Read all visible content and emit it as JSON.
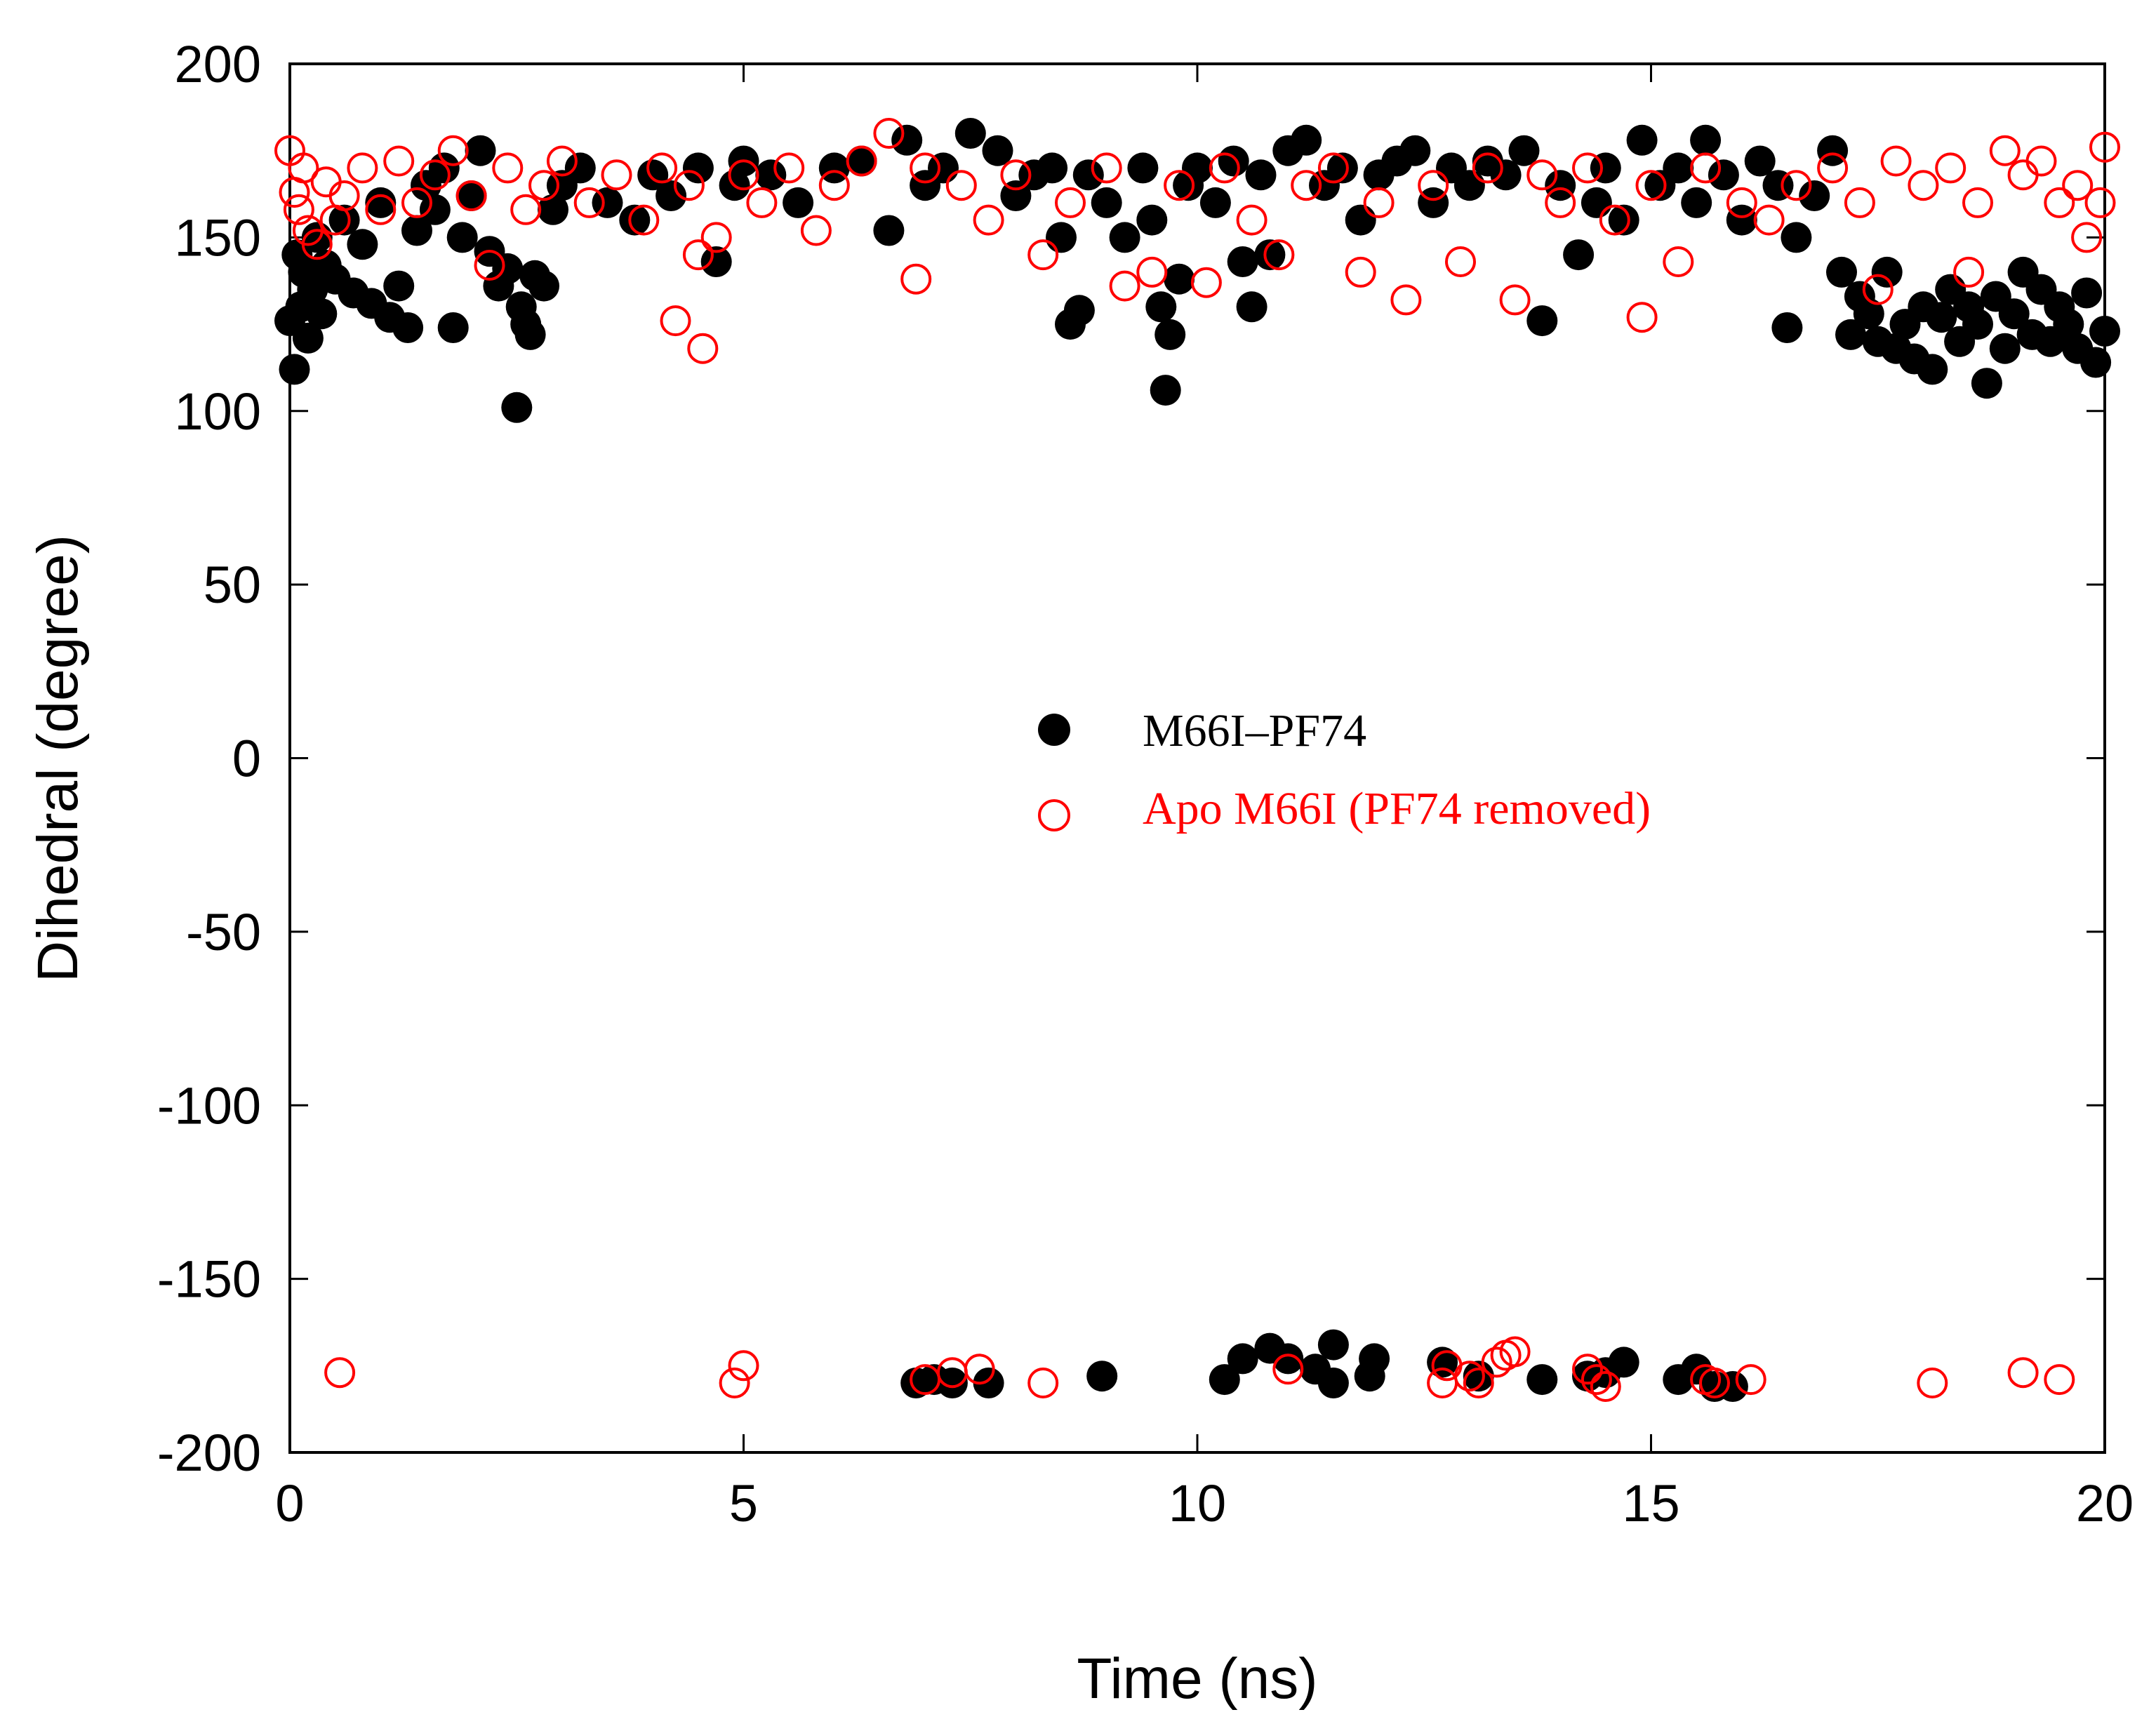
{
  "chart_data": {
    "type": "scatter",
    "title": "",
    "xlabel": "Time (ns)",
    "ylabel": "Dihedral (degree)",
    "xlim": [
      0,
      20
    ],
    "ylim": [
      -200,
      200
    ],
    "xticks": [
      0,
      5,
      10,
      15,
      20
    ],
    "yticks": [
      200,
      150,
      100,
      50,
      0,
      -50,
      -100,
      -150,
      -200
    ],
    "grid": false,
    "legend_position": "center",
    "series": [
      {
        "name": "M66I–PF74",
        "marker": "filled-circle",
        "color": "#000000",
        "points": [
          [
            0.0,
            126
          ],
          [
            0.05,
            112
          ],
          [
            0.08,
            145
          ],
          [
            0.12,
            130
          ],
          [
            0.15,
            140
          ],
          [
            0.2,
            121
          ],
          [
            0.25,
            135
          ],
          [
            0.3,
            150
          ],
          [
            0.35,
            128
          ],
          [
            0.4,
            142
          ],
          [
            0.5,
            138
          ],
          [
            0.6,
            155
          ],
          [
            0.7,
            134
          ],
          [
            0.8,
            148
          ],
          [
            0.9,
            131
          ],
          [
            1.0,
            160
          ],
          [
            1.1,
            127
          ],
          [
            1.2,
            136
          ],
          [
            1.3,
            124
          ],
          [
            1.4,
            152
          ],
          [
            1.5,
            165
          ],
          [
            1.6,
            158
          ],
          [
            1.7,
            170
          ],
          [
            1.8,
            124
          ],
          [
            1.9,
            150
          ],
          [
            2.0,
            162
          ],
          [
            2.1,
            175
          ],
          [
            2.2,
            146
          ],
          [
            2.3,
            136
          ],
          [
            2.4,
            141
          ],
          [
            2.5,
            101
          ],
          [
            2.55,
            130
          ],
          [
            2.6,
            125
          ],
          [
            2.65,
            122
          ],
          [
            2.7,
            139
          ],
          [
            2.8,
            136
          ],
          [
            2.9,
            158
          ],
          [
            3.0,
            165
          ],
          [
            3.2,
            170
          ],
          [
            3.5,
            160
          ],
          [
            3.8,
            155
          ],
          [
            4.0,
            168
          ],
          [
            4.2,
            162
          ],
          [
            4.5,
            170
          ],
          [
            4.7,
            143
          ],
          [
            4.9,
            165
          ],
          [
            5.0,
            172
          ],
          [
            5.3,
            168
          ],
          [
            5.6,
            160
          ],
          [
            6.0,
            170
          ],
          [
            6.3,
            172
          ],
          [
            6.6,
            152
          ],
          [
            6.8,
            178
          ],
          [
            7.0,
            165
          ],
          [
            7.2,
            170
          ],
          [
            7.5,
            180
          ],
          [
            7.8,
            175
          ],
          [
            8.0,
            162
          ],
          [
            8.2,
            168
          ],
          [
            8.4,
            170
          ],
          [
            8.5,
            150
          ],
          [
            8.6,
            125
          ],
          [
            8.7,
            129
          ],
          [
            8.8,
            168
          ],
          [
            9.0,
            160
          ],
          [
            9.2,
            150
          ],
          [
            9.4,
            170
          ],
          [
            9.5,
            155
          ],
          [
            9.6,
            130
          ],
          [
            9.65,
            106
          ],
          [
            9.7,
            122
          ],
          [
            9.8,
            138
          ],
          [
            9.9,
            165
          ],
          [
            10.0,
            170
          ],
          [
            10.2,
            160
          ],
          [
            10.4,
            172
          ],
          [
            10.5,
            143
          ],
          [
            10.6,
            130
          ],
          [
            10.7,
            168
          ],
          [
            10.8,
            145
          ],
          [
            11.0,
            175
          ],
          [
            11.2,
            178
          ],
          [
            11.4,
            165
          ],
          [
            11.6,
            170
          ],
          [
            11.8,
            155
          ],
          [
            12.0,
            168
          ],
          [
            12.2,
            172
          ],
          [
            12.4,
            175
          ],
          [
            12.6,
            160
          ],
          [
            12.8,
            170
          ],
          [
            13.0,
            165
          ],
          [
            13.2,
            172
          ],
          [
            13.4,
            168
          ],
          [
            13.6,
            175
          ],
          [
            13.8,
            126
          ],
          [
            14.0,
            165
          ],
          [
            14.2,
            145
          ],
          [
            14.4,
            160
          ],
          [
            14.5,
            170
          ],
          [
            14.7,
            155
          ],
          [
            14.9,
            178
          ],
          [
            15.1,
            165
          ],
          [
            15.3,
            170
          ],
          [
            15.5,
            160
          ],
          [
            15.6,
            178
          ],
          [
            15.8,
            168
          ],
          [
            16.0,
            155
          ],
          [
            16.2,
            172
          ],
          [
            16.4,
            165
          ],
          [
            16.5,
            124
          ],
          [
            16.6,
            150
          ],
          [
            16.8,
            162
          ],
          [
            17.0,
            175
          ],
          [
            17.1,
            140
          ],
          [
            17.2,
            122
          ],
          [
            17.3,
            133
          ],
          [
            17.4,
            128
          ],
          [
            17.5,
            120
          ],
          [
            17.6,
            140
          ],
          [
            17.7,
            118
          ],
          [
            17.8,
            125
          ],
          [
            17.9,
            115
          ],
          [
            18.0,
            130
          ],
          [
            18.1,
            112
          ],
          [
            18.2,
            127
          ],
          [
            18.3,
            135
          ],
          [
            18.4,
            120
          ],
          [
            18.5,
            130
          ],
          [
            18.6,
            125
          ],
          [
            18.7,
            108
          ],
          [
            18.8,
            133
          ],
          [
            18.9,
            118
          ],
          [
            19.0,
            128
          ],
          [
            19.1,
            140
          ],
          [
            19.2,
            122
          ],
          [
            19.3,
            135
          ],
          [
            19.4,
            120
          ],
          [
            19.5,
            130
          ],
          [
            19.6,
            125
          ],
          [
            19.7,
            118
          ],
          [
            19.8,
            134
          ],
          [
            19.9,
            114
          ],
          [
            20.0,
            123
          ],
          [
            6.9,
            -180
          ],
          [
            7.1,
            -179
          ],
          [
            7.3,
            -180
          ],
          [
            7.7,
            -180
          ],
          [
            8.95,
            -178
          ],
          [
            10.3,
            -179
          ],
          [
            10.5,
            -173
          ],
          [
            10.8,
            -170
          ],
          [
            11.0,
            -173
          ],
          [
            11.3,
            -176
          ],
          [
            11.5,
            -180
          ],
          [
            11.5,
            -169
          ],
          [
            11.9,
            -178
          ],
          [
            11.95,
            -173
          ],
          [
            12.7,
            -174
          ],
          [
            13.1,
            -178
          ],
          [
            13.8,
            -179
          ],
          [
            14.3,
            -178
          ],
          [
            14.5,
            -177
          ],
          [
            14.7,
            -174
          ],
          [
            15.3,
            -179
          ],
          [
            15.5,
            -176
          ],
          [
            15.7,
            -181
          ],
          [
            15.9,
            -181
          ]
        ]
      },
      {
        "name": "Apo M66I (PF74 removed)",
        "marker": "open-circle",
        "color": "#ff0000",
        "points": [
          [
            0.0,
            175
          ],
          [
            0.05,
            163
          ],
          [
            0.1,
            158
          ],
          [
            0.15,
            170
          ],
          [
            0.2,
            152
          ],
          [
            0.3,
            148
          ],
          [
            0.4,
            166
          ],
          [
            0.5,
            155
          ],
          [
            0.6,
            162
          ],
          [
            0.8,
            170
          ],
          [
            1.0,
            158
          ],
          [
            1.2,
            172
          ],
          [
            1.4,
            160
          ],
          [
            1.6,
            168
          ],
          [
            1.8,
            175
          ],
          [
            2.0,
            162
          ],
          [
            2.2,
            142
          ],
          [
            2.4,
            170
          ],
          [
            2.6,
            158
          ],
          [
            2.8,
            165
          ],
          [
            3.0,
            172
          ],
          [
            3.3,
            160
          ],
          [
            3.6,
            168
          ],
          [
            3.9,
            155
          ],
          [
            4.1,
            170
          ],
          [
            4.25,
            126
          ],
          [
            4.4,
            165
          ],
          [
            4.5,
            145
          ],
          [
            4.55,
            118
          ],
          [
            4.7,
            150
          ],
          [
            5.0,
            168
          ],
          [
            5.2,
            160
          ],
          [
            5.5,
            170
          ],
          [
            5.8,
            152
          ],
          [
            6.0,
            165
          ],
          [
            6.3,
            172
          ],
          [
            6.6,
            180
          ],
          [
            6.9,
            138
          ],
          [
            7.0,
            170
          ],
          [
            7.4,
            165
          ],
          [
            7.7,
            155
          ],
          [
            8.0,
            168
          ],
          [
            8.3,
            145
          ],
          [
            8.6,
            160
          ],
          [
            9.0,
            170
          ],
          [
            9.2,
            136
          ],
          [
            9.5,
            140
          ],
          [
            9.8,
            165
          ],
          [
            10.1,
            137
          ],
          [
            10.3,
            170
          ],
          [
            10.6,
            155
          ],
          [
            10.9,
            145
          ],
          [
            11.2,
            165
          ],
          [
            11.5,
            170
          ],
          [
            11.8,
            140
          ],
          [
            12.0,
            160
          ],
          [
            12.3,
            132
          ],
          [
            12.6,
            165
          ],
          [
            12.9,
            143
          ],
          [
            13.2,
            170
          ],
          [
            13.5,
            132
          ],
          [
            13.8,
            168
          ],
          [
            14.0,
            160
          ],
          [
            14.3,
            170
          ],
          [
            14.6,
            155
          ],
          [
            14.9,
            127
          ],
          [
            15.0,
            165
          ],
          [
            15.3,
            143
          ],
          [
            15.6,
            170
          ],
          [
            16.0,
            160
          ],
          [
            16.3,
            155
          ],
          [
            16.6,
            165
          ],
          [
            17.0,
            170
          ],
          [
            17.3,
            160
          ],
          [
            17.5,
            135
          ],
          [
            17.7,
            172
          ],
          [
            18.0,
            165
          ],
          [
            18.3,
            170
          ],
          [
            18.5,
            140
          ],
          [
            18.6,
            160
          ],
          [
            18.9,
            175
          ],
          [
            19.1,
            168
          ],
          [
            19.3,
            172
          ],
          [
            19.5,
            160
          ],
          [
            19.7,
            165
          ],
          [
            19.8,
            150
          ],
          [
            20.0,
            176
          ],
          [
            19.95,
            160
          ],
          [
            0.55,
            -177
          ],
          [
            4.9,
            -180
          ],
          [
            5.0,
            -175
          ],
          [
            7.0,
            -179
          ],
          [
            7.3,
            -177
          ],
          [
            7.6,
            -176
          ],
          [
            8.3,
            -180
          ],
          [
            11.0,
            -176
          ],
          [
            12.7,
            -180
          ],
          [
            12.75,
            -175
          ],
          [
            13.0,
            -178
          ],
          [
            13.1,
            -180
          ],
          [
            13.3,
            -174
          ],
          [
            13.4,
            -172
          ],
          [
            13.5,
            -171
          ],
          [
            14.3,
            -176
          ],
          [
            14.4,
            -179
          ],
          [
            14.5,
            -181
          ],
          [
            15.6,
            -179
          ],
          [
            15.7,
            -180
          ],
          [
            16.1,
            -179
          ],
          [
            18.1,
            -180
          ],
          [
            19.1,
            -177
          ],
          [
            19.5,
            -179
          ]
        ]
      }
    ]
  }
}
